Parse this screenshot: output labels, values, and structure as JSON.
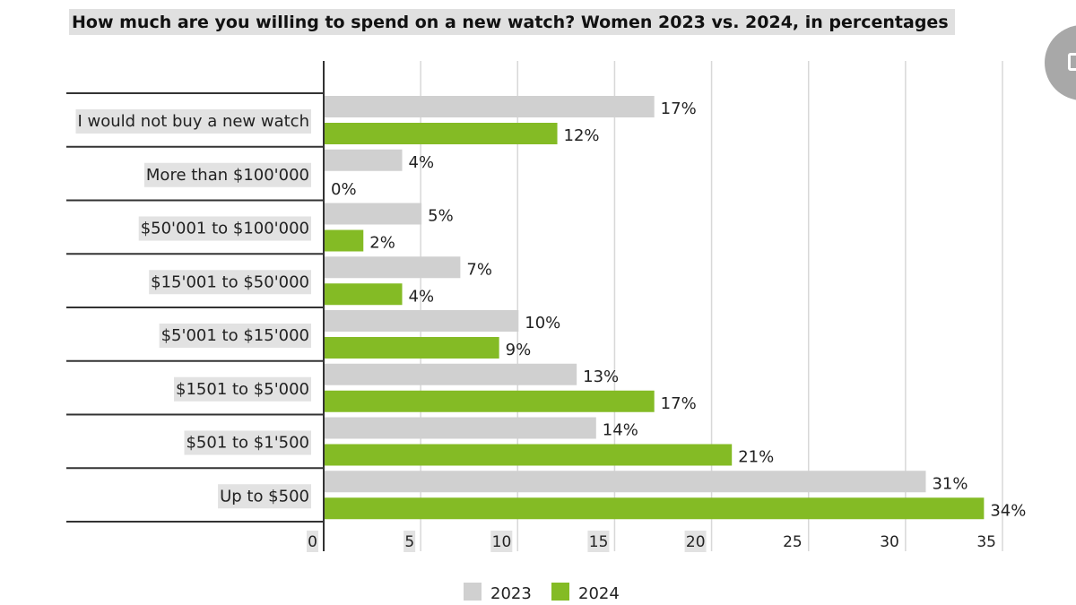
{
  "chart_data": {
    "type": "bar",
    "orientation": "horizontal",
    "title": "How much are you willing to spend on a new watch? Women 2023 vs. 2024, in percentages",
    "categories": [
      "I would not buy a new watch",
      "More than $100'000",
      "$50'001 to $100'000",
      "$15'001 to $50'000",
      "$5'001 to $15'000",
      "$1501 to $5'000",
      "$501 to $1'500",
      "Up to $500"
    ],
    "series": [
      {
        "name": "2023",
        "color": "#d0d0d0",
        "values": [
          17,
          4,
          5,
          7,
          10,
          13,
          14,
          31
        ]
      },
      {
        "name": "2024",
        "color": "#84bb25",
        "values": [
          12,
          0,
          2,
          4,
          9,
          17,
          21,
          34
        ]
      }
    ],
    "value_suffix": "%",
    "xlim": [
      0,
      35
    ],
    "xticks": [
      0,
      5,
      10,
      15,
      20,
      25,
      30,
      35
    ],
    "grid": true,
    "legend_position": "bottom"
  },
  "side_button": {
    "icon": "chat-icon"
  }
}
